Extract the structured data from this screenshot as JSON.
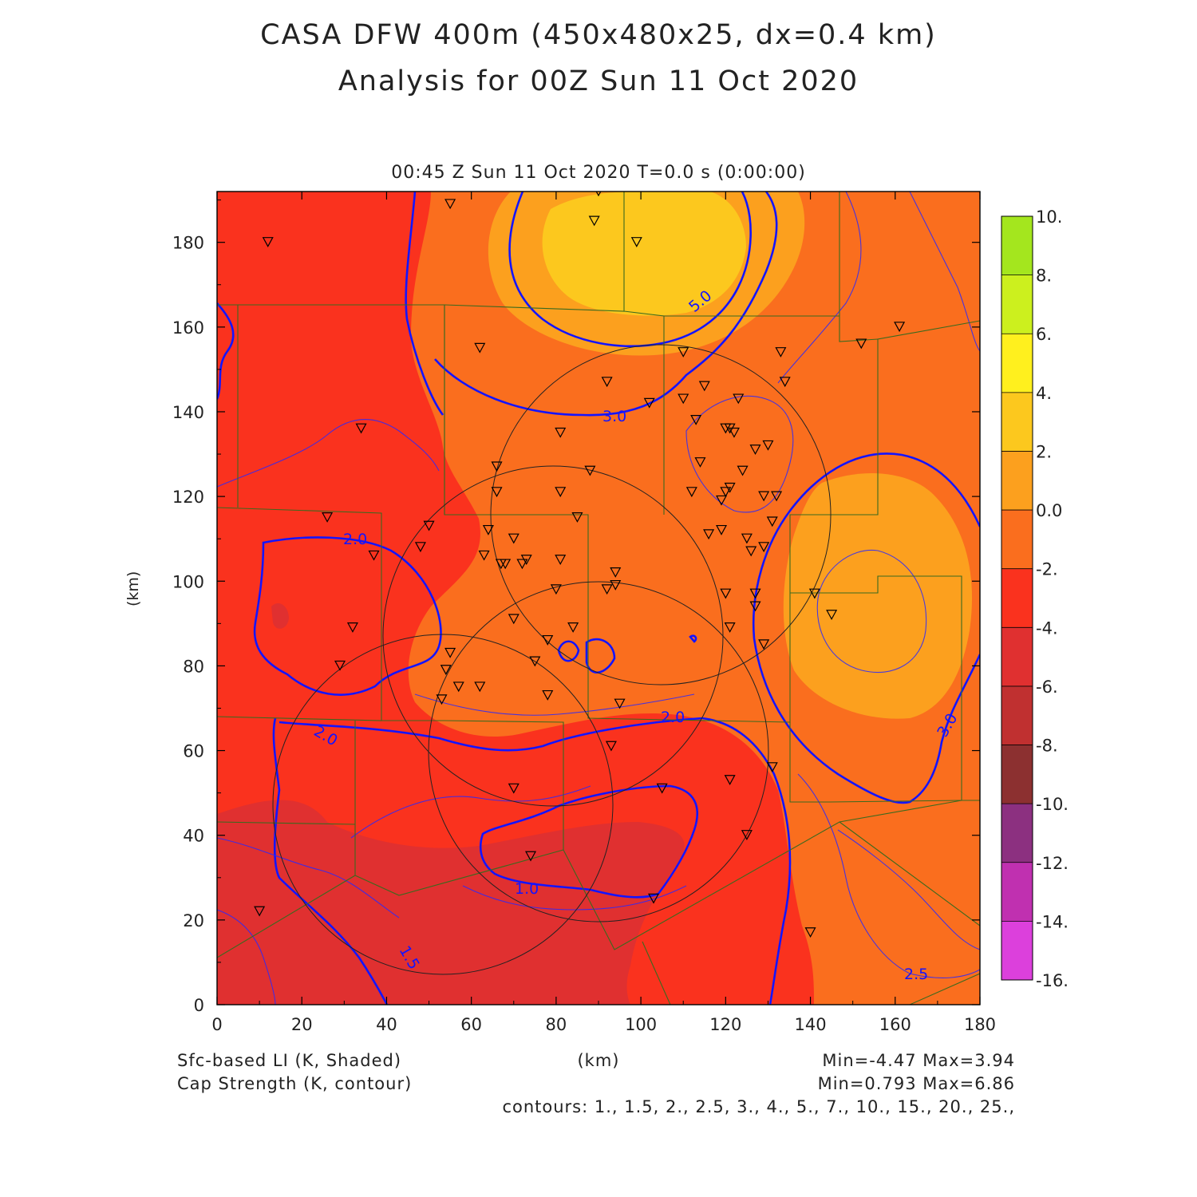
{
  "title_line1": "CASA DFW 400m (450x480x25, dx=0.4 km)",
  "title_line2": "Analysis for 00Z Sun 11 Oct 2020",
  "subtitle": "00:45 Z Sun 11 Oct 2020    T=0.0 s (0:00:00)",
  "xlabel": "(km)",
  "ylabel": "(km)",
  "x_ticks": [
    "0",
    "20",
    "40",
    "60",
    "80",
    "100",
    "120",
    "140",
    "160",
    "180"
  ],
  "y_ticks": [
    "0",
    "20",
    "40",
    "60",
    "80",
    "100",
    "120",
    "140",
    "160",
    "180"
  ],
  "footer": {
    "shaded_label": "Sfc-based LI (K, Shaded)",
    "contour_label": "Cap Strength (K, contour)",
    "shaded_range": "Min=-4.47 Max=3.94",
    "contour_range": "Min=0.793 Max=6.86",
    "contours": "contours: 1., 1.5, 2., 2.5, 3., 4., 5., 7., 10., 15., 20., 25.,"
  },
  "colorbar": {
    "labels": [
      "10.",
      "8.",
      "6.",
      "4.",
      "2.",
      "0.0",
      "-2.",
      "-4.",
      "-6.",
      "-8.",
      "-10.",
      "-12.",
      "-14.",
      "-16."
    ],
    "colors": [
      "#a4e61e",
      "#ccf01e",
      "#fff01e",
      "#fcc81e",
      "#fca01e",
      "#fa6e1e",
      "#fa321e",
      "#e03030",
      "#c03030",
      "#8c3030",
      "#8c3080",
      "#c030b0",
      "#dc40dc"
    ]
  },
  "contour_labels": [
    "5.0",
    "3.0",
    "2.0",
    "2.0",
    "2.0",
    "1.0",
    "1.5",
    "2.5",
    "3.0"
  ],
  "chart_data": {
    "type": "heatmap",
    "x_range_km": [
      0,
      180
    ],
    "y_range_km": [
      0,
      192
    ],
    "stations_km": [
      [
        90,
        192
      ],
      [
        55,
        189
      ],
      [
        12,
        180
      ],
      [
        89,
        185
      ],
      [
        99,
        180
      ],
      [
        62,
        155
      ],
      [
        152,
        156
      ],
      [
        161,
        160
      ],
      [
        110,
        154
      ],
      [
        133,
        154
      ],
      [
        92,
        147
      ],
      [
        102,
        142
      ],
      [
        110,
        143
      ],
      [
        115,
        146
      ],
      [
        123,
        143
      ],
      [
        134,
        147
      ],
      [
        34,
        136
      ],
      [
        81,
        135
      ],
      [
        113,
        138
      ],
      [
        120,
        136
      ],
      [
        121,
        136
      ],
      [
        122,
        135
      ],
      [
        127,
        131
      ],
      [
        130,
        132
      ],
      [
        88,
        126
      ],
      [
        66,
        127
      ],
      [
        114,
        128
      ],
      [
        124,
        126
      ],
      [
        81,
        121
      ],
      [
        112,
        121
      ],
      [
        120,
        121
      ],
      [
        121,
        122
      ],
      [
        119,
        119
      ],
      [
        129,
        120
      ],
      [
        132,
        120
      ],
      [
        66,
        121
      ],
      [
        26,
        115
      ],
      [
        85,
        115
      ],
      [
        131,
        114
      ],
      [
        64,
        112
      ],
      [
        50,
        113
      ],
      [
        70,
        110
      ],
      [
        119,
        112
      ],
      [
        116,
        111
      ],
      [
        125,
        110
      ],
      [
        126,
        107
      ],
      [
        129,
        108
      ],
      [
        48,
        108
      ],
      [
        37,
        106
      ],
      [
        63,
        106
      ],
      [
        67,
        104
      ],
      [
        68,
        104
      ],
      [
        72,
        104
      ],
      [
        73,
        105
      ],
      [
        81,
        105
      ],
      [
        94,
        102
      ],
      [
        94,
        99
      ],
      [
        92,
        98
      ],
      [
        80,
        98
      ],
      [
        120,
        97
      ],
      [
        127,
        97
      ],
      [
        141,
        97
      ],
      [
        127,
        94
      ],
      [
        145,
        92
      ],
      [
        70,
        91
      ],
      [
        84,
        89
      ],
      [
        121,
        89
      ],
      [
        32,
        89
      ],
      [
        78,
        86
      ],
      [
        55,
        83
      ],
      [
        75,
        81
      ],
      [
        54,
        79
      ],
      [
        29,
        80
      ],
      [
        129,
        85
      ],
      [
        57,
        75
      ],
      [
        62,
        75
      ],
      [
        53,
        72
      ],
      [
        78,
        73
      ],
      [
        95,
        71
      ],
      [
        93,
        61
      ],
      [
        131,
        56
      ],
      [
        121,
        53
      ],
      [
        70,
        51
      ],
      [
        105,
        51
      ],
      [
        125,
        40
      ],
      [
        74,
        35
      ],
      [
        103,
        25
      ],
      [
        10,
        22
      ],
      [
        140,
        17
      ]
    ]
  }
}
